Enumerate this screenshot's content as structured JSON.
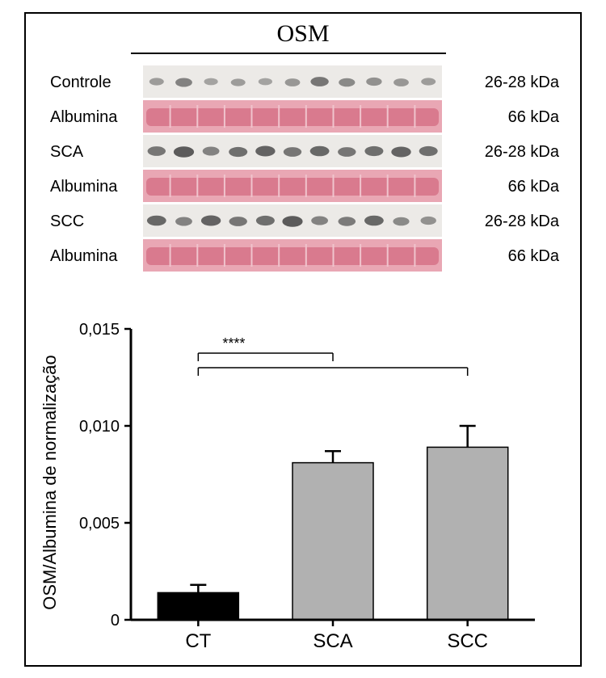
{
  "header": {
    "title": "OSM"
  },
  "blots": {
    "rows": [
      {
        "label": "Controle",
        "kda": "26-28 kDa",
        "type": "gray",
        "intensities": [
          0.25,
          0.45,
          0.2,
          0.25,
          0.2,
          0.3,
          0.55,
          0.4,
          0.35,
          0.3,
          0.25
        ]
      },
      {
        "label": "Albumina",
        "kda": "66 kDa",
        "type": "pink"
      },
      {
        "label": "SCA",
        "kda": "26-28 kDa",
        "type": "gray",
        "intensities": [
          0.55,
          0.75,
          0.45,
          0.6,
          0.7,
          0.55,
          0.65,
          0.55,
          0.6,
          0.7,
          0.6
        ]
      },
      {
        "label": "Albumina",
        "kda": "66 kDa",
        "type": "pink"
      },
      {
        "label": "SCC",
        "kda": "26-28 kDa",
        "type": "gray",
        "intensities": [
          0.65,
          0.45,
          0.7,
          0.55,
          0.6,
          0.75,
          0.45,
          0.5,
          0.65,
          0.4,
          0.35
        ]
      },
      {
        "label": "Albumina",
        "kda": "66 kDa",
        "type": "pink"
      }
    ],
    "gray_bg": "#eceae7",
    "gray_dark": "#3a3a3a",
    "pink_bg": "#e9a7b4",
    "pink_band": "#d97a8e",
    "pink_lane_sep": "#f0c4cd"
  },
  "chart": {
    "type": "bar",
    "y_title": "OSM/Albumina de normalização",
    "categories": [
      "CT",
      "SCA",
      "SCC"
    ],
    "values": [
      0.0014,
      0.0081,
      0.0089
    ],
    "errors": [
      0.0004,
      0.0006,
      0.0011
    ],
    "bar_colors": [
      "#000000",
      "#b1b1b1",
      "#b1b1b1"
    ],
    "ylim": [
      0,
      0.015
    ],
    "yticks": [
      0,
      0.005,
      0.01,
      0.015
    ],
    "ytick_labels": [
      "0",
      "0,005",
      "0,010",
      "0,015"
    ],
    "axis_color": "#000000",
    "tick_fontsize": 20,
    "cat_fontsize": 24,
    "title_fontsize": 22,
    "bar_width": 0.6,
    "sig_label": "****",
    "sig_pairs": [
      [
        0,
        1
      ],
      [
        0,
        2
      ]
    ]
  }
}
